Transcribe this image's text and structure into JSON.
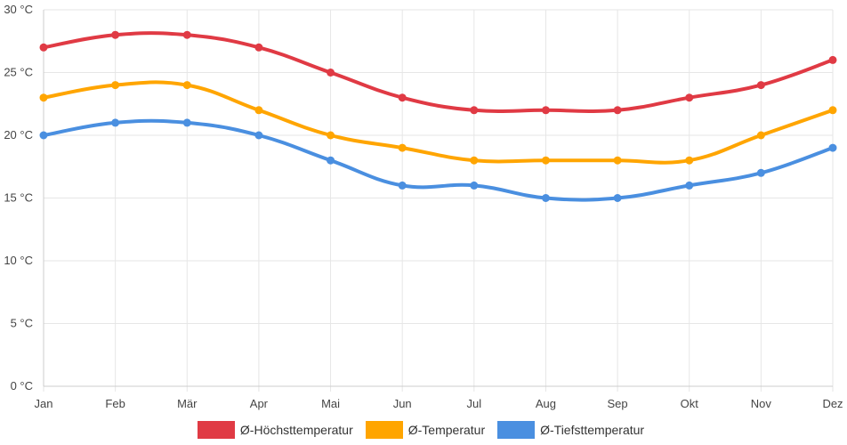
{
  "chart_data": {
    "type": "line",
    "categories": [
      "Jan",
      "Feb",
      "Mär",
      "Apr",
      "Mai",
      "Jun",
      "Jul",
      "Aug",
      "Sep",
      "Okt",
      "Nov",
      "Dez"
    ],
    "y_ticks": [
      "0 °C",
      "5 °C",
      "10 °C",
      "15 °C",
      "20 °C",
      "25 °C",
      "30 °C"
    ],
    "ylim": [
      0,
      30
    ],
    "grid": true,
    "legend_position": "bottom",
    "series": [
      {
        "name": "Ø-Höchsttemperatur",
        "color": "#e03a44",
        "values": [
          27,
          28,
          28,
          27,
          25,
          23,
          22,
          22,
          22,
          23,
          24,
          26
        ]
      },
      {
        "name": "Ø-Temperatur",
        "color": "#ffa500",
        "values": [
          23,
          24,
          24,
          22,
          20,
          19,
          18,
          18,
          18,
          18,
          20,
          22
        ]
      },
      {
        "name": "Ø-Tiefsttemperatur",
        "color": "#4a8fe0",
        "values": [
          20,
          21,
          21,
          20,
          18,
          16,
          16,
          15,
          15,
          16,
          17,
          19
        ]
      }
    ]
  }
}
